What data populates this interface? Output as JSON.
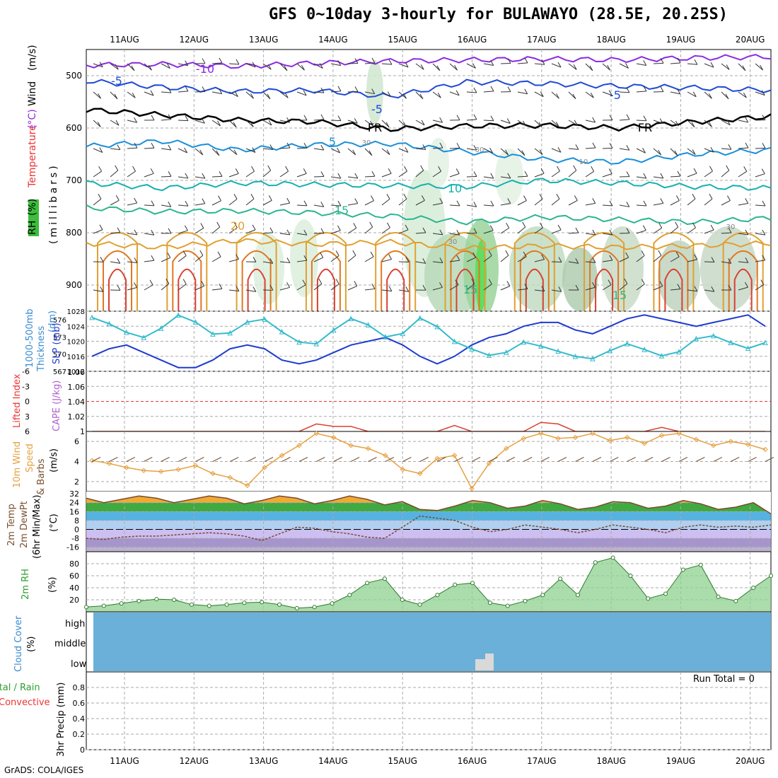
{
  "title": "GFS 0~10day 3-hourly for BULAWAYO (28.5E, 20.25S)",
  "footer": "GrADS: COLA/IGES",
  "colors": {
    "wind_red": "#e33",
    "temp_purple": "#8a2be2",
    "blue": "#1e3ccf",
    "cyan": "#22aacc",
    "teal": "#2ba58f",
    "rh_green": "#2ca02c",
    "cloud": "#6ab0d8",
    "cape": "#b060d0",
    "orange": "#e6a040"
  },
  "chart_data": [
    {
      "type": "area",
      "panel": "upper-air",
      "ylabel_parts": [
        "Wind",
        "(m/s)",
        "Temperature",
        "(°C)",
        "RH",
        "(%)"
      ],
      "ylabel_mb": "(millibars)",
      "ylim": [
        950,
        450
      ],
      "log_scale": false,
      "y_ticks": [
        500,
        600,
        700,
        800,
        900
      ],
      "x_ticks": [
        "11AUG",
        "12AUG",
        "13AUG",
        "14AUG",
        "15AUG",
        "16AUG",
        "17AUG",
        "18AUG",
        "19AUG",
        "20AUG"
      ],
      "contour_labels": [
        "-10",
        "-5",
        "-5",
        "-5",
        "FR",
        "FR",
        "5",
        "10",
        "15",
        "20",
        "15",
        "15",
        "30",
        "30",
        "30",
        "30",
        "10"
      ],
      "series": [
        {
          "name": "-10",
          "level": -10,
          "values": [
            480,
            478,
            482,
            476,
            472,
            470,
            468,
            470,
            466,
            464
          ]
        },
        {
          "name": "-5",
          "level": -5,
          "values": [
            510,
            522,
            530,
            528,
            540,
            512,
            515,
            520,
            523,
            528
          ]
        },
        {
          "name": "FR",
          "level": 0,
          "values": [
            565,
            575,
            585,
            588,
            602,
            596,
            595,
            600,
            588,
            578
          ]
        },
        {
          "name": "5",
          "level": 5,
          "values": [
            635,
            625,
            642,
            632,
            630,
            645,
            660,
            665,
            650,
            642
          ]
        },
        {
          "name": "10",
          "level": 10,
          "values": [
            705,
            715,
            705,
            708,
            710,
            712,
            700,
            705,
            712,
            715
          ]
        },
        {
          "name": "15",
          "level": 15,
          "values": [
            752,
            760,
            758,
            762,
            768,
            780,
            770,
            775,
            780,
            772
          ]
        },
        {
          "name": "20",
          "level": 20,
          "values": [
            820,
            828,
            815,
            822,
            818,
            830,
            825,
            828,
            825,
            820
          ]
        }
      ]
    },
    {
      "type": "line",
      "panel": "slp-thickness",
      "ylabel_left": "Thickness 1000-500mb (dm)",
      "ylabel_left_parts": [
        "1000-500mb",
        "Thickness",
        "(dm)"
      ],
      "ylabel_right": "SLP (mb)",
      "yleft_ticks": [
        567,
        570,
        573,
        576
      ],
      "yright_ticks": [
        1012,
        1016,
        1020,
        1024,
        1028
      ],
      "ylim_left": [
        567,
        577.5
      ],
      "ylim_right": [
        1012,
        1028
      ],
      "series": [
        {
          "name": "SLP",
          "axis": "right",
          "values": [
            1016,
            1018,
            1019,
            1017,
            1015,
            1013,
            1013,
            1015,
            1018,
            1019,
            1018,
            1015,
            1014,
            1015,
            1017,
            1019,
            1020,
            1021,
            1019,
            1016,
            1014,
            1016,
            1019,
            1021,
            1022,
            1024,
            1025,
            1025,
            1023,
            1022,
            1024,
            1026,
            1027,
            1026,
            1025,
            1024,
            1025,
            1026,
            1027,
            1024
          ]
        },
        {
          "name": "Thickness",
          "axis": "left",
          "values": [
            576.4,
            575.3,
            573.8,
            572.9,
            574.5,
            576.8,
            575.6,
            573.5,
            573.7,
            575.6,
            576.1,
            573.9,
            572.1,
            571.8,
            574.2,
            576.2,
            575.1,
            573.0,
            573.6,
            576.3,
            574.8,
            572.2,
            570.9,
            569.8,
            570.3,
            572.1,
            571.4,
            570.5,
            569.6,
            569.2,
            570.6,
            571.8,
            570.8,
            569.7,
            570.4,
            572.7,
            573.2,
            572.0,
            571.0,
            572.0
          ]
        }
      ]
    },
    {
      "type": "line",
      "panel": "lifted-cape",
      "ylabel_left": "Lifted Index",
      "ylabel_right": "CAPE (J/kg)",
      "yleft_ticks": [
        "-6",
        "-3",
        "0",
        "3",
        "6"
      ],
      "yright_ticks": [
        "1",
        "1.02",
        "1.04",
        "1.06",
        "1.06"
      ],
      "ylim_left": [
        -6,
        6
      ],
      "ylim_right": [
        1.0,
        1.06
      ],
      "series": [
        {
          "name": "Lifted Index",
          "values": [
            6,
            6,
            6,
            6,
            6,
            6,
            6,
            6,
            6,
            6,
            6,
            6,
            6,
            4.5,
            5,
            5,
            6,
            6,
            6,
            6,
            6,
            4.8,
            6,
            6,
            6,
            6,
            4.2,
            4.5,
            6,
            6,
            6,
            6,
            6,
            5.2,
            6,
            6,
            6,
            6,
            6,
            6
          ]
        }
      ]
    },
    {
      "type": "line",
      "panel": "10m-wind",
      "ylabel_left_parts": [
        "10m Wind"
      ],
      "ylabel_speed": [
        "Speed",
        "& Barbs"
      ],
      "ylabel_right": "(m/s)",
      "y_ticks": [
        2,
        4,
        6
      ],
      "ylim": [
        1,
        7
      ],
      "series": [
        {
          "name": "Speed",
          "values": [
            4.1,
            3.8,
            3.4,
            3.1,
            3.0,
            3.2,
            3.6,
            2.8,
            2.4,
            1.6,
            3.4,
            4.6,
            5.6,
            6.8,
            6.4,
            5.6,
            5.3,
            4.6,
            3.2,
            2.8,
            4.3,
            4.6,
            1.3,
            3.8,
            5.3,
            6.3,
            6.8,
            6.3,
            6.4,
            6.8,
            6.1,
            6.4,
            5.8,
            6.6,
            6.8,
            6.2,
            5.6,
            6.0,
            5.7,
            5.2
          ]
        }
      ]
    },
    {
      "type": "area",
      "panel": "2m-temp",
      "ylabel_parts": [
        "2m Temp",
        "2m DewPt",
        "(6hr Min/Max)"
      ],
      "ylabel_right": "(°C)",
      "y_ticks": [
        -16,
        -8,
        0,
        8,
        16,
        24,
        32
      ],
      "ylim": [
        -20,
        34
      ],
      "series": [
        {
          "name": "2m Temp",
          "values": [
            28,
            24,
            27,
            30,
            28,
            24,
            27,
            30,
            28,
            23,
            26,
            30,
            28,
            23,
            26,
            30,
            27,
            22,
            25,
            18,
            17,
            21,
            26,
            24,
            19,
            21,
            26,
            23,
            18,
            20,
            25,
            24,
            19,
            21,
            26,
            23,
            18,
            20,
            24,
            14
          ]
        },
        {
          "name": "2m DewPt",
          "values": [
            -8,
            -9,
            -7,
            -6,
            -6,
            -5,
            -4,
            -3,
            -4,
            -6,
            -10,
            -4,
            2,
            1,
            -2,
            -4,
            -7,
            -8,
            2,
            12,
            10,
            8,
            2,
            -2,
            0,
            4,
            2,
            0,
            -3,
            0,
            4,
            2,
            0,
            -3,
            2,
            4,
            2,
            3,
            2,
            4
          ]
        }
      ]
    },
    {
      "type": "area",
      "panel": "2m-rh",
      "ylabel_parts": [
        "2m RH"
      ],
      "ylabel_right": "(%)",
      "y_ticks": [
        20,
        40,
        60,
        80
      ],
      "ylim": [
        0,
        100
      ],
      "series": [
        {
          "name": "2m RH",
          "values": [
            8,
            10,
            14,
            18,
            21,
            20,
            12,
            10,
            12,
            15,
            16,
            12,
            6,
            8,
            14,
            28,
            48,
            55,
            20,
            12,
            28,
            45,
            48,
            15,
            10,
            18,
            28,
            55,
            28,
            82,
            90,
            60,
            22,
            30,
            70,
            78,
            25,
            18,
            40,
            60
          ]
        }
      ]
    },
    {
      "type": "area",
      "panel": "cloud-cover",
      "ylabel_parts": [
        "Cloud Cover",
        "(%)"
      ],
      "levels": [
        "high",
        "middle",
        "low"
      ],
      "low_cloud_patch": true
    },
    {
      "type": "bar",
      "panel": "precip",
      "ylabel_parts": [
        "Total / Rain",
        "Convective",
        "3hr Precip (mm)"
      ],
      "y_ticks": [
        0,
        0.2,
        0.4,
        0.6,
        0.8
      ],
      "ylim": [
        0,
        1.0
      ],
      "run_total_label": "Run Total = 0",
      "series": [
        {
          "name": "Total / Rain",
          "values": [
            0,
            0,
            0,
            0,
            0,
            0,
            0,
            0,
            0,
            0
          ]
        }
      ]
    }
  ]
}
